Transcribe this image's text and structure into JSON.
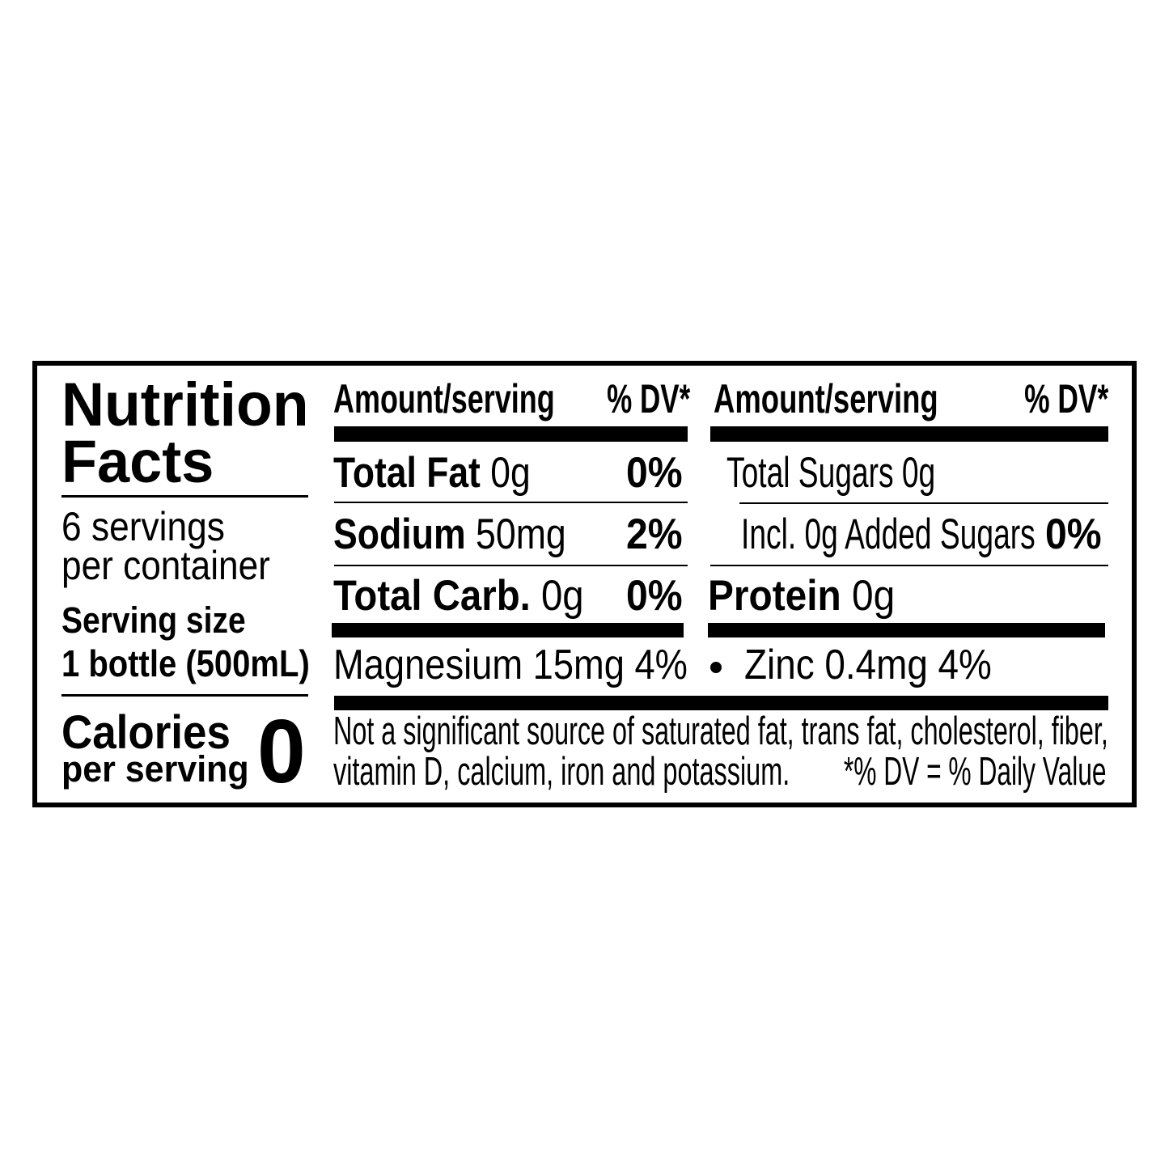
{
  "label": {
    "title_line1": "Nutrition",
    "title_line2": "Facts",
    "servings_line1": "6 servings",
    "servings_line2": "per container",
    "serving_size_label": "Serving size",
    "serving_size_value": "1 bottle (500mL)",
    "calories_label": "Calories",
    "calories_sublabel": "per serving",
    "calories_value": "0"
  },
  "columns": [
    {
      "header_amount": "Amount/serving",
      "header_dv": "% DV*"
    },
    {
      "header_amount": "Amount/serving",
      "header_dv": "% DV*"
    }
  ],
  "nutrients": {
    "total_fat": {
      "name": "Total Fat",
      "amount": "0g",
      "dv": "0%"
    },
    "sodium": {
      "name": "Sodium",
      "amount": "50mg",
      "dv": "2%"
    },
    "total_carb": {
      "name": "Total Carb.",
      "amount": "0g",
      "dv": "0%"
    },
    "total_sugars": {
      "text": "Total Sugars 0g"
    },
    "added_sugars": {
      "text": "Incl. 0g Added Sugars",
      "dv": "0%"
    },
    "protein": {
      "name": "Protein",
      "amount": "0g"
    }
  },
  "minerals": {
    "magnesium": "Magnesium 15mg 4%",
    "zinc": "Zinc 0.4mg 4%"
  },
  "footnote": {
    "line1": "Not a significant source of saturated fat, trans fat, cholesterol, fiber,",
    "line2": "vitamin D, calcium, iron and potassium.",
    "dv_note": "*% DV = % Daily Value"
  }
}
